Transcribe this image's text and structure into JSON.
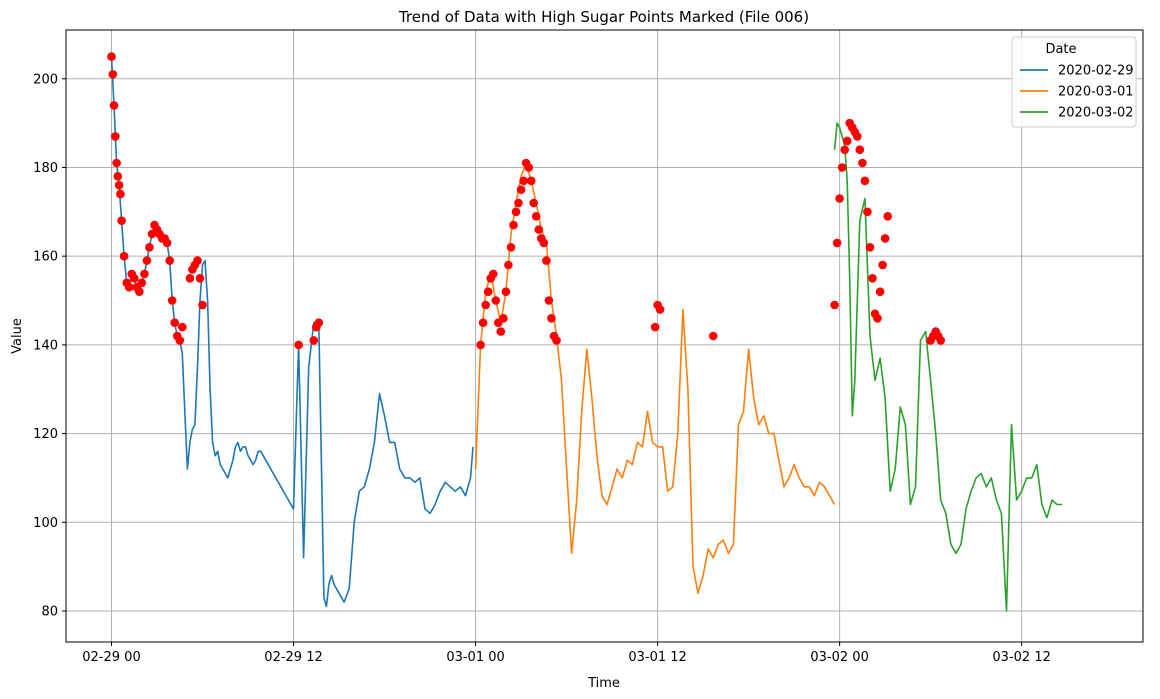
{
  "chart_data": {
    "type": "line",
    "title": "Trend of Data with High Sugar Points Marked (File 006)",
    "xlabel": "Time",
    "ylabel": "Value",
    "xlim": [
      "2020-02-28 21:00",
      "2020-03-02 20:00"
    ],
    "ylim": [
      73,
      211
    ],
    "x_ticks": [
      "02-29 00",
      "02-29 12",
      "03-01 00",
      "03-01 12",
      "03-02 00",
      "03-02 12"
    ],
    "y_ticks": [
      80,
      100,
      120,
      140,
      160,
      180,
      200
    ],
    "grid": true,
    "legend": {
      "title": "Date",
      "placement": "top-right"
    },
    "colors": {
      "2020-02-29": "#1f77b4",
      "2020-03-01": "#ff7f0e",
      "2020-03-02": "#2ca02c",
      "markers": "#ff0000"
    },
    "series": [
      {
        "name": "2020-02-29",
        "x": [
          "2020-02-29 00:00",
          "2020-02-29 00:10",
          "2020-02-29 00:20",
          "2020-02-29 00:30",
          "2020-02-29 00:40",
          "2020-02-29 00:50",
          "2020-02-29 01:00",
          "2020-02-29 01:10",
          "2020-02-29 01:20",
          "2020-02-29 01:30",
          "2020-02-29 01:40",
          "2020-02-29 01:50",
          "2020-02-29 02:00",
          "2020-02-29 02:10",
          "2020-02-29 02:20",
          "2020-02-29 02:30",
          "2020-02-29 02:40",
          "2020-02-29 02:50",
          "2020-02-29 03:00",
          "2020-02-29 03:10",
          "2020-02-29 03:20",
          "2020-02-29 03:30",
          "2020-02-29 03:40",
          "2020-02-29 03:50",
          "2020-02-29 04:00",
          "2020-02-29 04:10",
          "2020-02-29 04:20",
          "2020-02-29 04:30",
          "2020-02-29 04:40",
          "2020-02-29 04:50",
          "2020-02-29 05:00",
          "2020-02-29 05:10",
          "2020-02-29 05:20",
          "2020-02-29 05:30",
          "2020-02-29 05:40",
          "2020-02-29 05:50",
          "2020-02-29 06:00",
          "2020-02-29 06:10",
          "2020-02-29 06:20",
          "2020-02-29 06:30",
          "2020-02-29 06:40",
          "2020-02-29 06:50",
          "2020-02-29 07:00",
          "2020-02-29 07:10",
          "2020-02-29 07:20",
          "2020-02-29 07:30",
          "2020-02-29 07:40",
          "2020-02-29 07:50",
          "2020-02-29 08:00",
          "2020-02-29 08:10",
          "2020-02-29 08:20",
          "2020-02-29 08:30",
          "2020-02-29 08:40",
          "2020-02-29 08:50",
          "2020-02-29 09:00",
          "2020-02-29 09:10",
          "2020-02-29 09:20",
          "2020-02-29 09:30",
          "2020-02-29 09:40",
          "2020-02-29 09:50",
          "2020-02-29 12:00",
          "2020-02-29 12:20",
          "2020-02-29 12:40",
          "2020-02-29 13:00",
          "2020-02-29 13:20",
          "2020-02-29 13:40",
          "2020-02-29 14:00",
          "2020-02-29 14:10",
          "2020-02-29 14:20",
          "2020-02-29 14:30",
          "2020-02-29 14:40",
          "2020-02-29 15:00",
          "2020-02-29 15:10",
          "2020-02-29 15:20",
          "2020-02-29 15:40",
          "2020-02-29 16:00",
          "2020-02-29 16:20",
          "2020-02-29 16:40",
          "2020-02-29 17:00",
          "2020-02-29 17:20",
          "2020-02-29 17:40",
          "2020-02-29 18:00",
          "2020-02-29 18:20",
          "2020-02-29 18:40",
          "2020-02-29 19:00",
          "2020-02-29 19:20",
          "2020-02-29 19:40",
          "2020-02-29 20:00",
          "2020-02-29 20:20",
          "2020-02-29 20:40",
          "2020-02-29 21:00",
          "2020-02-29 21:20",
          "2020-02-29 21:40",
          "2020-02-29 22:00",
          "2020-02-29 22:20",
          "2020-02-29 22:40",
          "2020-02-29 23:00",
          "2020-02-29 23:20",
          "2020-02-29 23:40",
          "2020-02-29 23:50"
        ],
        "y": [
          205,
          194,
          181,
          176,
          168,
          160,
          154,
          153,
          156,
          155,
          153,
          152,
          154,
          156,
          159,
          162,
          165,
          167,
          166,
          165,
          164,
          164,
          163,
          159,
          150,
          145,
          142,
          141,
          138,
          125,
          112,
          118,
          121,
          122,
          135,
          150,
          158,
          159,
          150,
          130,
          118,
          115,
          116,
          113,
          112,
          111,
          110,
          112,
          114,
          117,
          118,
          116,
          117,
          117,
          115,
          114,
          113,
          114,
          116,
          116,
          103,
          140,
          92,
          135,
          145,
          145,
          83,
          81,
          86,
          88,
          86,
          84,
          83,
          82,
          85,
          100,
          107,
          108,
          112,
          118,
          129,
          124,
          118,
          118,
          112,
          110,
          110,
          109,
          110,
          103,
          102,
          104,
          107,
          109,
          108,
          107,
          108,
          106,
          110,
          117
        ]
      },
      {
        "name": "2020-03-01",
        "x": [
          "2020-03-01 00:00",
          "2020-03-01 00:20",
          "2020-03-01 00:40",
          "2020-03-01 01:00",
          "2020-03-01 01:20",
          "2020-03-01 01:40",
          "2020-03-01 02:00",
          "2020-03-01 02:20",
          "2020-03-01 02:40",
          "2020-03-01 03:00",
          "2020-03-01 03:20",
          "2020-03-01 03:40",
          "2020-03-01 04:00",
          "2020-03-01 04:20",
          "2020-03-01 04:40",
          "2020-03-01 05:00",
          "2020-03-01 05:20",
          "2020-03-01 05:40",
          "2020-03-01 06:00",
          "2020-03-01 06:20",
          "2020-03-01 06:40",
          "2020-03-01 07:00",
          "2020-03-01 07:20",
          "2020-03-01 07:40",
          "2020-03-01 08:00",
          "2020-03-01 08:20",
          "2020-03-01 08:40",
          "2020-03-01 09:00",
          "2020-03-01 09:20",
          "2020-03-01 09:40",
          "2020-03-01 10:00",
          "2020-03-01 10:20",
          "2020-03-01 10:40",
          "2020-03-01 11:00",
          "2020-03-01 11:20",
          "2020-03-01 11:40",
          "2020-03-01 12:00",
          "2020-03-01 12:20",
          "2020-03-01 12:40",
          "2020-03-01 13:00",
          "2020-03-01 13:20",
          "2020-03-01 13:40",
          "2020-03-01 14:00",
          "2020-03-01 14:20",
          "2020-03-01 14:40",
          "2020-03-01 15:00",
          "2020-03-01 15:20",
          "2020-03-01 15:40",
          "2020-03-01 16:00",
          "2020-03-01 16:20",
          "2020-03-01 16:40",
          "2020-03-01 17:00",
          "2020-03-01 17:20",
          "2020-03-01 17:40",
          "2020-03-01 18:00",
          "2020-03-01 18:20",
          "2020-03-01 18:40",
          "2020-03-01 19:00",
          "2020-03-01 19:20",
          "2020-03-01 19:40",
          "2020-03-01 20:00",
          "2020-03-01 20:20",
          "2020-03-01 20:40",
          "2020-03-01 21:00",
          "2020-03-01 21:20",
          "2020-03-01 21:40",
          "2020-03-01 22:00",
          "2020-03-01 22:20",
          "2020-03-01 22:40",
          "2020-03-01 23:00",
          "2020-03-01 23:20",
          "2020-03-01 23:40"
        ],
        "y": [
          112,
          140,
          152,
          156,
          150,
          145,
          152,
          165,
          172,
          178,
          181,
          177,
          172,
          166,
          163,
          150,
          142,
          132,
          112,
          93,
          105,
          125,
          139,
          128,
          115,
          106,
          104,
          108,
          112,
          110,
          114,
          113,
          118,
          117,
          125,
          118,
          117,
          117,
          107,
          108,
          120,
          148,
          130,
          90,
          84,
          88,
          94,
          92,
          95,
          96,
          93,
          95,
          122,
          125,
          139,
          128,
          122,
          124,
          120,
          120,
          114,
          108,
          110,
          113,
          110,
          108,
          108,
          106,
          109,
          108,
          106,
          104
        ]
      },
      {
        "name": "2020-03-02",
        "x": [
          "2020-03-01 23:40",
          "2020-03-01 23:50",
          "2020-03-02 00:00",
          "2020-03-02 00:10",
          "2020-03-02 00:20",
          "2020-03-02 00:30",
          "2020-03-02 00:40",
          "2020-03-02 00:50",
          "2020-03-02 01:00",
          "2020-03-02 01:20",
          "2020-03-02 01:40",
          "2020-03-02 02:00",
          "2020-03-02 02:20",
          "2020-03-02 02:40",
          "2020-03-02 03:00",
          "2020-03-02 03:20",
          "2020-03-02 03:40",
          "2020-03-02 04:00",
          "2020-03-02 04:20",
          "2020-03-02 04:40",
          "2020-03-02 05:00",
          "2020-03-02 05:20",
          "2020-03-02 05:40",
          "2020-03-02 06:00",
          "2020-03-02 06:20",
          "2020-03-02 06:40",
          "2020-03-02 07:00",
          "2020-03-02 07:20",
          "2020-03-02 07:40",
          "2020-03-02 08:00",
          "2020-03-02 08:20",
          "2020-03-02 08:40",
          "2020-03-02 09:00",
          "2020-03-02 09:20",
          "2020-03-02 09:40",
          "2020-03-02 10:00",
          "2020-03-02 10:20",
          "2020-03-02 10:40",
          "2020-03-02 11:00",
          "2020-03-02 11:20",
          "2020-03-02 11:40",
          "2020-03-02 12:00",
          "2020-03-02 12:20",
          "2020-03-02 12:40",
          "2020-03-02 13:00",
          "2020-03-02 13:20",
          "2020-03-02 13:40",
          "2020-03-02 14:00",
          "2020-03-02 14:20",
          "2020-03-02 14:40"
        ],
        "y": [
          184,
          190,
          189,
          187,
          185,
          177,
          155,
          124,
          132,
          168,
          173,
          142,
          132,
          137,
          128,
          107,
          112,
          126,
          122,
          104,
          108,
          141,
          143,
          132,
          120,
          105,
          102,
          95,
          93,
          95,
          103,
          107,
          110,
          111,
          108,
          110,
          105,
          102,
          80,
          122,
          105,
          107,
          110,
          110,
          113,
          104,
          101,
          105,
          104,
          104
        ]
      }
    ],
    "high_points": {
      "x": [
        "2020-02-29 00:00",
        "2020-02-29 00:05",
        "2020-02-29 00:10",
        "2020-02-29 00:15",
        "2020-02-29 00:20",
        "2020-02-29 00:25",
        "2020-02-29 00:30",
        "2020-02-29 00:35",
        "2020-02-29 00:40",
        "2020-02-29 00:50",
        "2020-02-29 01:00",
        "2020-02-29 01:10",
        "2020-02-29 01:20",
        "2020-02-29 01:30",
        "2020-02-29 01:40",
        "2020-02-29 01:50",
        "2020-02-29 02:00",
        "2020-02-29 02:10",
        "2020-02-29 02:20",
        "2020-02-29 02:30",
        "2020-02-29 02:40",
        "2020-02-29 02:50",
        "2020-02-29 03:00",
        "2020-02-29 03:10",
        "2020-02-29 03:20",
        "2020-02-29 03:30",
        "2020-02-29 03:40",
        "2020-02-29 03:50",
        "2020-02-29 04:00",
        "2020-02-29 04:10",
        "2020-02-29 04:20",
        "2020-02-29 04:30",
        "2020-02-29 04:40",
        "2020-02-29 05:10",
        "2020-02-29 05:20",
        "2020-02-29 05:30",
        "2020-02-29 05:40",
        "2020-02-29 05:50",
        "2020-02-29 06:00",
        "2020-02-29 12:20",
        "2020-02-29 13:20",
        "2020-02-29 13:30",
        "2020-02-29 13:40",
        "2020-03-01 00:20",
        "2020-03-01 00:30",
        "2020-03-01 00:40",
        "2020-03-01 00:50",
        "2020-03-01 01:00",
        "2020-03-01 01:10",
        "2020-03-01 01:20",
        "2020-03-01 01:30",
        "2020-03-01 01:40",
        "2020-03-01 01:50",
        "2020-03-01 02:00",
        "2020-03-01 02:10",
        "2020-03-01 02:20",
        "2020-03-01 02:30",
        "2020-03-01 02:40",
        "2020-03-01 02:50",
        "2020-03-01 03:00",
        "2020-03-01 03:10",
        "2020-03-01 03:20",
        "2020-03-01 03:30",
        "2020-03-01 03:40",
        "2020-03-01 03:50",
        "2020-03-01 04:00",
        "2020-03-01 04:10",
        "2020-03-01 04:20",
        "2020-03-01 04:30",
        "2020-03-01 04:40",
        "2020-03-01 04:50",
        "2020-03-01 05:00",
        "2020-03-01 05:10",
        "2020-03-01 05:20",
        "2020-03-01 11:50",
        "2020-03-01 12:00",
        "2020-03-01 12:10",
        "2020-03-01 15:40",
        "2020-03-01 23:40",
        "2020-03-01 23:50",
        "2020-03-02 00:00",
        "2020-03-02 00:10",
        "2020-03-02 00:20",
        "2020-03-02 00:30",
        "2020-03-02 00:40",
        "2020-03-02 00:50",
        "2020-03-02 01:00",
        "2020-03-02 01:10",
        "2020-03-02 01:20",
        "2020-03-02 01:30",
        "2020-03-02 01:40",
        "2020-03-02 01:50",
        "2020-03-02 02:00",
        "2020-03-02 02:10",
        "2020-03-02 02:20",
        "2020-03-02 02:30",
        "2020-03-02 02:40",
        "2020-03-02 02:50",
        "2020-03-02 03:00",
        "2020-03-02 03:10",
        "2020-03-02 06:00",
        "2020-03-02 06:10",
        "2020-03-02 06:20",
        "2020-03-02 06:30",
        "2020-03-02 06:40"
      ],
      "y": [
        205,
        201,
        194,
        187,
        181,
        178,
        176,
        174,
        168,
        160,
        154,
        153,
        156,
        155,
        153,
        152,
        154,
        156,
        159,
        162,
        165,
        167,
        166,
        165,
        164,
        164,
        163,
        159,
        150,
        145,
        142,
        141,
        144,
        155,
        157,
        158,
        159,
        155,
        149,
        140,
        141,
        144,
        145,
        140,
        145,
        149,
        152,
        155,
        156,
        150,
        145,
        143,
        146,
        152,
        158,
        162,
        167,
        170,
        172,
        175,
        177,
        181,
        180,
        177,
        172,
        169,
        166,
        164,
        163,
        159,
        150,
        146,
        142,
        141,
        144,
        149,
        148,
        142,
        149,
        163,
        173,
        180,
        184,
        186,
        190,
        189,
        188,
        187,
        184,
        181,
        177,
        170,
        162,
        155,
        147,
        146,
        152,
        158,
        164,
        169,
        141,
        142,
        143,
        142,
        141
      ]
    }
  }
}
